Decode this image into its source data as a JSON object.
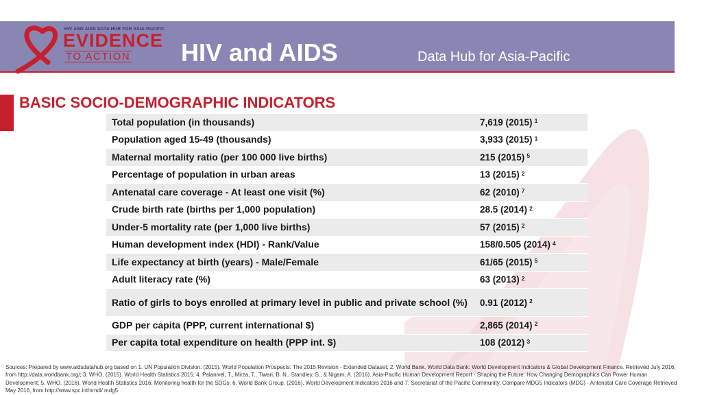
{
  "header": {
    "logo_small": "HIV AND AIDS DATA HUB FOR ASIA-PACIFIC",
    "logo_evidence": "EVIDENCE",
    "logo_action": "TO ACTION",
    "title": "HIV and AIDS",
    "subtitle": "Data Hub for Asia-Pacific"
  },
  "section": {
    "title": "BASIC SOCIO-DEMOGRAPHIC INDICATORS"
  },
  "indicators": [
    {
      "label": "Total population (in thousands)",
      "value": "7,619 (2015)",
      "source": "1"
    },
    {
      "label": "Population aged 15-49 (thousands)",
      "value": "3,933 (2015)",
      "source": "1"
    },
    {
      "label": "Maternal mortality ratio (per 100 000 live births)",
      "value": "215 (2015)",
      "source": "5"
    },
    {
      "label": "Percentage of population in urban areas",
      "value": "13 (2015)",
      "source": "2"
    },
    {
      "label": "Antenatal care coverage -  At least one visit (%)",
      "value": "62 (2010)",
      "source": "7"
    },
    {
      "label": "Crude birth rate (births per 1,000 population)",
      "value": "28.5 (2014)",
      "source": "2"
    },
    {
      "label": "Under-5 mortality rate (per 1,000 live births)",
      "value": "57 (2015)",
      "source": "2"
    },
    {
      "label": "Human development index (HDI) - Rank/Value",
      "value": "158/0.505 (2014)",
      "source": "4"
    },
    {
      "label": "Life expectancy at birth (years) - Male/Female",
      "value": "61/65 (2015)",
      "source": "5"
    },
    {
      "label": "Adult literacy rate (%)",
      "value": "63 (2013)",
      "source": "2"
    },
    {
      "label": "Ratio of girls to boys enrolled at primary level in public and private school (%)",
      "value": "0.91 (2012)",
      "source": "2"
    },
    {
      "label": "GDP per capita (PPP, current international $)",
      "value": "2,865 (2014)",
      "source": "2"
    },
    {
      "label": "Per capita total expenditure on health (PPP int. $)",
      "value": "108 (2012)",
      "source": "3"
    }
  ],
  "footer": {
    "sources": "Sources: Prepared by www.aidsdatahub.org based on 1. UN Population Division. (2015). World Population Prospects: The 2015 Revision - Extended Dataset; 2.  World Bank. World Data Bank: World Development Indicators & Global Development Finance. Retrieved July 2016, from http://data.worldbank.org/; 3. WHO. (2015). World Health Statistics 2015; 4. Palanivel, T., Mirza, T., Tiwari, B. N., Standley, S., & Nigam, A. (2016). Asia-Pacific Human Development Report - Shaping the Future: How Changing Demographics Can Power Human Development; 5. WHO. (2016). World Health Statistics 2016: Monitoring health for the SDGs; 6. World Bank Group. (2016). World Development Indicators 2016 and 7. Secretariat of the Pacific Community. Compare MDG5 Indicators (MDG) - Antenatal Care Coverage  Retrieved May 2016, from http://www.spc.int/nmdi/ mdg5"
  },
  "colors": {
    "header_bg": "#8a86b4",
    "accent_red": "#c5202e",
    "row_shade": "#ebebeb",
    "ribbon_pink": "#f3dadd"
  }
}
